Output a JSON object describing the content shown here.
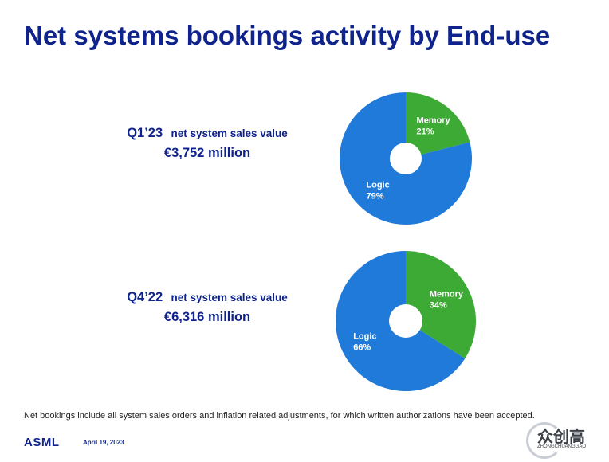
{
  "title": "Net systems bookings activity by End-use",
  "colors": {
    "logic": "#1f7ad9",
    "memory": "#3daa35",
    "title": "#0f238c"
  },
  "chart_data": [
    {
      "type": "pie",
      "donut": true,
      "period": "Q1’23",
      "description": "net system sales value",
      "total": "€3,752 million",
      "slices": [
        {
          "label": "Memory",
          "percent_label": "21%",
          "value": 21
        },
        {
          "label": "Logic",
          "percent_label": "79%",
          "value": 79
        }
      ]
    },
    {
      "type": "pie",
      "donut": true,
      "period": "Q4’22",
      "description": "net system sales value",
      "total": "€6,316 million",
      "slices": [
        {
          "label": "Memory",
          "percent_label": "34%",
          "value": 34
        },
        {
          "label": "Logic",
          "percent_label": "66%",
          "value": 66
        }
      ]
    }
  ],
  "footnote": "Net bookings include all system sales orders and inflation related adjustments, for which written authorizations have been accepted.",
  "footer": {
    "logo": "ASML",
    "date": "April 19, 2023"
  },
  "watermark": {
    "chinese": "众创高",
    "latin": "ZHONGCHUANGGAO"
  }
}
